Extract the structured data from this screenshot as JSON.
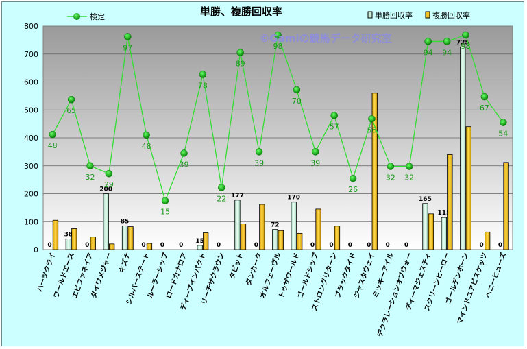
{
  "chart_data": {
    "type": "bar",
    "title": "単勝、複勝回収率",
    "watermark": "©Gamiの競馬データ研究室",
    "ylim": [
      0,
      800
    ],
    "yticks": [
      0,
      100,
      200,
      300,
      400,
      500,
      600,
      700,
      800
    ],
    "legend_position": "top",
    "categories": [
      "ハーツクライ",
      "ワールドエース",
      "エピファネイア",
      "ダイワメジャー",
      "キズナ",
      "シルバーステート",
      "ルーラーシップ",
      "ロードカナロア",
      "ディープインパクト",
      "リーチザクラウン",
      "タピット",
      "ダンカーク",
      "オルフェーヴル",
      "トゥザワールド",
      "ゴールドシップ",
      "ストロングリターン",
      "ブラックタイド",
      "ジャスタウェイ",
      "ミッキーアイル",
      "デクラレーションオブウォー",
      "ディーマジェスティ",
      "スクリーンヒーロー",
      "ゴールデンホーン",
      "マインドユアビスケッツ",
      "ヘニーヒューズ"
    ],
    "series": [
      {
        "name": "単勝回収率",
        "kind": "bar",
        "color": "#c8ecd8",
        "values": [
          0,
          38,
          0,
          200,
          85,
          0,
          0,
          0,
          15,
          0,
          177,
          0,
          72,
          170,
          0,
          0,
          0,
          0,
          0,
          0,
          165,
          115,
          725,
          0,
          0
        ]
      },
      {
        "name": "複勝回収率",
        "kind": "bar",
        "color": "#f0c020",
        "values": [
          105,
          75,
          45,
          20,
          82,
          22,
          0,
          0,
          60,
          0,
          92,
          162,
          68,
          58,
          145,
          84,
          0,
          560,
          0,
          0,
          128,
          340,
          440,
          63,
          312
        ]
      },
      {
        "name": "検定",
        "kind": "line",
        "color": "#33dd33",
        "values": [
          412,
          537,
          300,
          272,
          762,
          410,
          175,
          345,
          627,
          222,
          705,
          350,
          768,
          572,
          350,
          480,
          255,
          468,
          298,
          298,
          745,
          745,
          768,
          547,
          455
        ],
        "labels": [
          48,
          65,
          32,
          29,
          97,
          48,
          15,
          39,
          78,
          22,
          89,
          39,
          98,
          70,
          39,
          57,
          26,
          56,
          32,
          32,
          94,
          94,
          98,
          67,
          54
        ]
      }
    ],
    "colors": {
      "plot_bg_top": "#9a9a9a",
      "plot_bg_bottom": "#ffffff",
      "frame_bg": "#ccffff",
      "line_label": "#1a9a1a",
      "marker": "#12a012"
    }
  }
}
